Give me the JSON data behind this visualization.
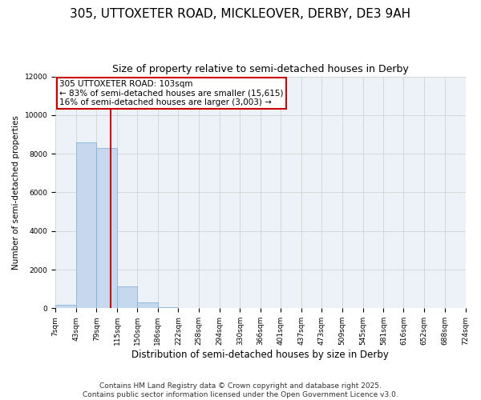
{
  "title_line1": "305, UTTOXETER ROAD, MICKLEOVER, DERBY, DE3 9AH",
  "title_line2": "Size of property relative to semi-detached houses in Derby",
  "xlabel": "Distribution of semi-detached houses by size in Derby",
  "ylabel": "Number of semi-detached properties",
  "footer_line1": "Contains HM Land Registry data © Crown copyright and database right 2025.",
  "footer_line2": "Contains public sector information licensed under the Open Government Licence v3.0.",
  "annotation_line1": "305 UTTOXETER ROAD: 103sqm",
  "annotation_line2": "← 83% of semi-detached houses are smaller (15,615)",
  "annotation_line3": "16% of semi-detached houses are larger (3,003) →",
  "property_size": 103,
  "bin_edges": [
    7,
    43,
    79,
    115,
    150,
    186,
    222,
    258,
    294,
    330,
    366,
    401,
    437,
    473,
    509,
    545,
    581,
    616,
    652,
    688,
    724
  ],
  "bin_labels": [
    "7sqm",
    "43sqm",
    "79sqm",
    "115sqm",
    "150sqm",
    "186sqm",
    "222sqm",
    "258sqm",
    "294sqm",
    "330sqm",
    "366sqm",
    "401sqm",
    "437sqm",
    "473sqm",
    "509sqm",
    "545sqm",
    "581sqm",
    "616sqm",
    "652sqm",
    "688sqm",
    "724sqm"
  ],
  "bar_heights": [
    200,
    8600,
    8300,
    1150,
    300,
    60,
    10,
    0,
    0,
    0,
    0,
    0,
    0,
    0,
    0,
    0,
    0,
    0,
    0,
    0
  ],
  "bar_color": "#c5d8ed",
  "bar_edge_color": "#7aabd4",
  "vline_color": "#cc0000",
  "vline_x": 103,
  "ylim": [
    0,
    12000
  ],
  "yticks": [
    0,
    2000,
    4000,
    6000,
    8000,
    10000,
    12000
  ],
  "grid_color": "#cccccc",
  "bg_color": "#edf2f9",
  "annotation_box_edge_color": "#cc0000",
  "annotation_fontsize": 7.5,
  "title1_fontsize": 11,
  "title2_fontsize": 9,
  "xlabel_fontsize": 8.5,
  "ylabel_fontsize": 7.5,
  "tick_fontsize": 6.5,
  "footer_fontsize": 6.5
}
